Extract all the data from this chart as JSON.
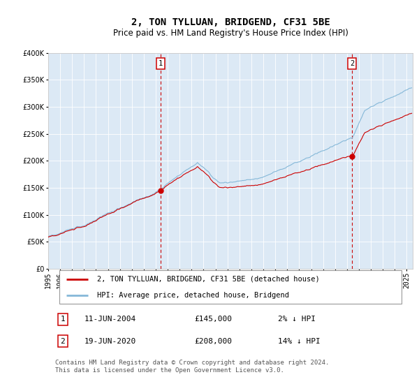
{
  "title": "2, TON TYLLUAN, BRIDGEND, CF31 5BE",
  "subtitle": "Price paid vs. HM Land Registry's House Price Index (HPI)",
  "ylim": [
    0,
    400000
  ],
  "yticks": [
    0,
    50000,
    100000,
    150000,
    200000,
    250000,
    300000,
    350000,
    400000
  ],
  "plot_bg_color": "#dce9f5",
  "hpi_color": "#85b8d8",
  "price_color": "#cc0000",
  "marker_color": "#cc0000",
  "vline_color": "#cc0000",
  "annotation_box_color": "#cc0000",
  "sale1_price": 145000,
  "sale1_t": 2004.4167,
  "sale2_price": 208000,
  "sale2_t": 2020.4167,
  "legend_line1": "2, TON TYLLUAN, BRIDGEND, CF31 5BE (detached house)",
  "legend_line2": "HPI: Average price, detached house, Bridgend",
  "table_row1_num": "1",
  "table_row1_date": "11-JUN-2004",
  "table_row1_price": "£145,000",
  "table_row1_hpi": "2% ↓ HPI",
  "table_row2_num": "2",
  "table_row2_date": "19-JUN-2020",
  "table_row2_price": "£208,000",
  "table_row2_hpi": "14% ↓ HPI",
  "footer": "Contains HM Land Registry data © Crown copyright and database right 2024.\nThis data is licensed under the Open Government Licence v3.0.",
  "title_fontsize": 10,
  "subtitle_fontsize": 8.5,
  "tick_fontsize": 7,
  "legend_fontsize": 7.5,
  "table_fontsize": 8,
  "footer_fontsize": 6.5,
  "xstart": 1995,
  "xend": 2025.5
}
